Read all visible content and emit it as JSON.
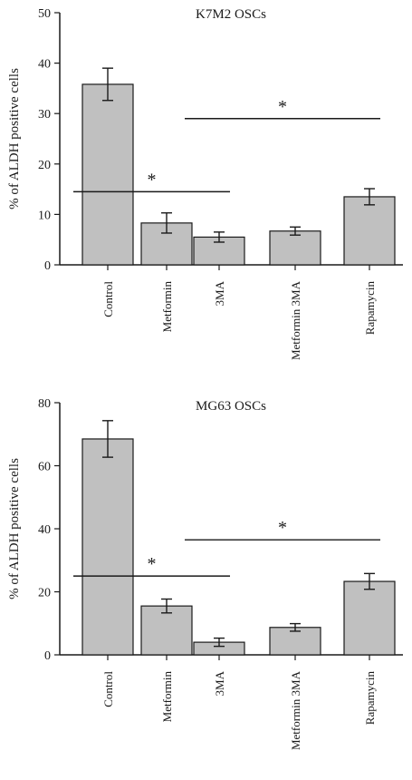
{
  "chart_data": [
    {
      "type": "bar",
      "title": "K7M2 OSCs",
      "ylabel": "% of ALDH positive cells",
      "xlabel": "",
      "ylim": [
        0,
        50
      ],
      "yticks": [
        0,
        10,
        20,
        30,
        40,
        50
      ],
      "categories": [
        "Control",
        "Metformin",
        "3MA",
        "Metformin 3MA",
        "Rapamycin"
      ],
      "values": [
        35.8,
        8.3,
        5.5,
        6.7,
        13.5
      ],
      "errors": [
        3.2,
        2.0,
        1.0,
        0.8,
        1.6
      ],
      "bar_color": "#c0c0c0",
      "annotations": [
        {
          "text": "*",
          "from": "Control",
          "to": "3MA",
          "y": 14.5
        },
        {
          "text": "*",
          "from": "3MA",
          "to": "Rapamycin",
          "y": 29.0
        }
      ]
    },
    {
      "type": "bar",
      "title": "MG63 OSCs",
      "ylabel": "% of ALDH positive cells",
      "xlabel": "",
      "ylim": [
        0,
        80
      ],
      "yticks": [
        0,
        20,
        40,
        60,
        80
      ],
      "categories": [
        "Control",
        "Metformin",
        "3MA",
        "Metformin 3MA",
        "Rapamycin"
      ],
      "values": [
        68.5,
        15.5,
        4.0,
        8.7,
        23.3
      ],
      "errors": [
        5.8,
        2.2,
        1.3,
        1.2,
        2.5
      ],
      "bar_color": "#c0c0c0",
      "annotations": [
        {
          "text": "*",
          "from": "Control",
          "to": "3MA",
          "y": 25.0
        },
        {
          "text": "*",
          "from": "3MA",
          "to": "Rapamycin",
          "y": 36.5
        }
      ]
    }
  ]
}
